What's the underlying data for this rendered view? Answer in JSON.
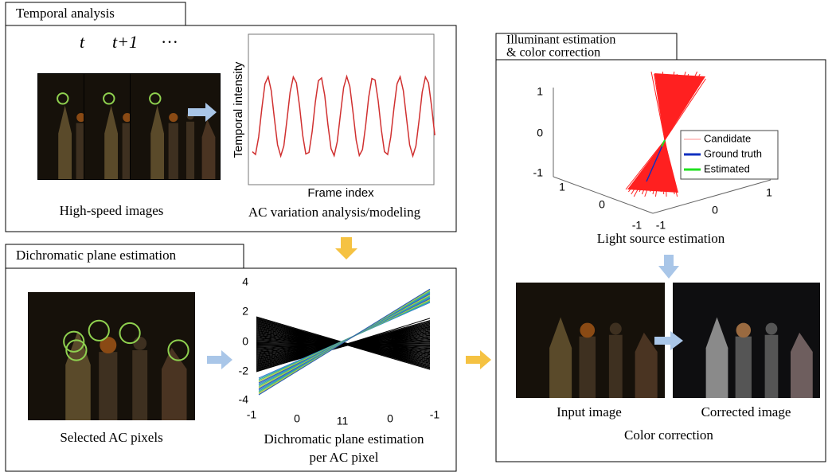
{
  "panels": [
    {
      "title": "Temporal analysis",
      "frame_labels": [
        "t",
        "t+1",
        "···"
      ],
      "image_caption": "High-speed images",
      "plot": {
        "y_label": "Temporal intensity",
        "x_label": "Frame index"
      },
      "plot_caption": "AC variation analysis/modeling"
    },
    {
      "title": "Dichromatic plane estimation",
      "image_caption": "Selected AC pixels",
      "plot": {
        "y_ticks": [
          "4",
          "2",
          "0",
          "-2",
          "-4"
        ],
        "x_ticks": [
          "-1",
          "0",
          "11",
          "0",
          "-1"
        ]
      },
      "plot_caption": [
        "Dichromatic plane estimation",
        "per AC pixel"
      ]
    },
    {
      "title": [
        "Illuminant estimation",
        "& color correction"
      ],
      "plot": {
        "z_ticks": [
          "1",
          "0",
          "-1"
        ],
        "x_ticks": [
          "1",
          "0",
          "-1"
        ],
        "y_ticks": [
          "-1",
          "0",
          "1"
        ],
        "legend": [
          "Candidate",
          "Ground truth",
          "Estimated"
        ]
      },
      "plot_caption": "Light source estimation",
      "image_captions": [
        "Input image",
        "Corrected image"
      ],
      "caption": "Color correction"
    }
  ]
}
